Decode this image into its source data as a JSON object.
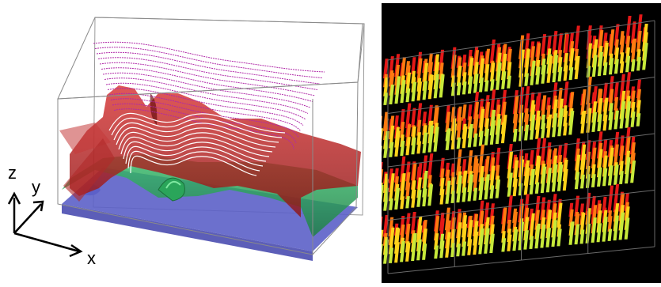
{
  "left_figure": {
    "axis_labels": {
      "x": "x",
      "y": "y",
      "z": "z"
    },
    "colors": {
      "top_surface": "#c41e1e",
      "middle_surface": "#2fae5a",
      "bottom_surface": "#5c60c8",
      "streamlines_upper": "#b02aa8",
      "streamlines_lower": "#ffffff",
      "box_edges": "#8a8a8a"
    }
  },
  "right_figure": {
    "background": "#000000",
    "grid": {
      "rows": 4,
      "columns": 4
    },
    "bar_gradient": [
      "#c7e93a",
      "#ffd21a",
      "#ff7a10",
      "#e41818"
    ]
  }
}
